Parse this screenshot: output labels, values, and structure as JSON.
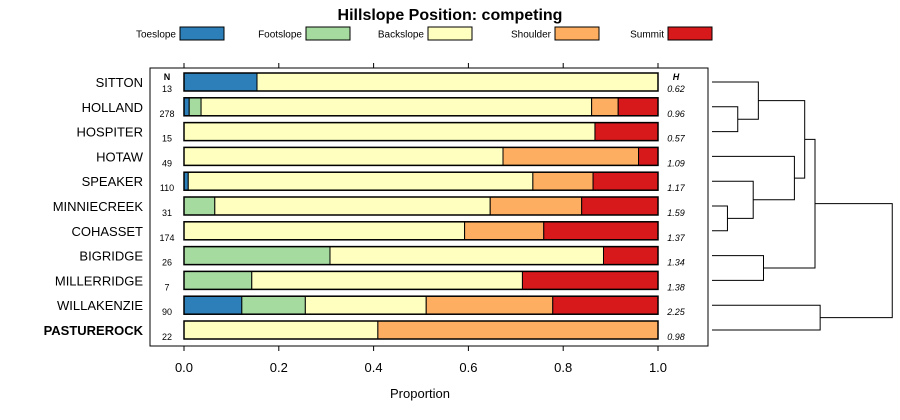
{
  "chart_data": {
    "type": "stacked-bar-horizontal",
    "title": "Hillslope Position: competing",
    "xlabel": "Proportion",
    "xlim": [
      0,
      1
    ],
    "xticks": [
      "0.0",
      "0.2",
      "0.4",
      "0.6",
      "0.8",
      "1.0"
    ],
    "n_header": "N",
    "h_header": "H",
    "legend": [
      {
        "name": "Toeslope",
        "color": "#2C7FB8"
      },
      {
        "name": "Footslope",
        "color": "#A6DBA0"
      },
      {
        "name": "Backslope",
        "color": "#FFFFBF"
      },
      {
        "name": "Shoulder",
        "color": "#FDAE61"
      },
      {
        "name": "Summit",
        "color": "#D7191C"
      }
    ],
    "rows": [
      {
        "name": "SITTON",
        "n": "13",
        "h": "0.62",
        "bold": false,
        "values": [
          0.154,
          0.0,
          0.846,
          0.0,
          0.0
        ]
      },
      {
        "name": "HOLLAND",
        "n": "278",
        "h": "0.96",
        "bold": false,
        "values": [
          0.011,
          0.025,
          0.824,
          0.056,
          0.084
        ]
      },
      {
        "name": "HOSPITER",
        "n": "15",
        "h": "0.57",
        "bold": false,
        "values": [
          0.0,
          0.0,
          0.867,
          0.0,
          0.133
        ]
      },
      {
        "name": "HOTAW",
        "n": "49",
        "h": "1.09",
        "bold": false,
        "values": [
          0.0,
          0.0,
          0.673,
          0.286,
          0.041
        ]
      },
      {
        "name": "SPEAKER",
        "n": "110",
        "h": "1.17",
        "bold": false,
        "values": [
          0.009,
          0.0,
          0.727,
          0.127,
          0.137
        ]
      },
      {
        "name": "MINNIECREEK",
        "n": "31",
        "h": "1.59",
        "bold": false,
        "values": [
          0.0,
          0.065,
          0.581,
          0.193,
          0.161
        ]
      },
      {
        "name": "COHASSET",
        "n": "174",
        "h": "1.37",
        "bold": false,
        "values": [
          0.0,
          0.0,
          0.592,
          0.167,
          0.241
        ]
      },
      {
        "name": "BIGRIDGE",
        "n": "26",
        "h": "1.34",
        "bold": false,
        "values": [
          0.0,
          0.308,
          0.577,
          0.0,
          0.115
        ]
      },
      {
        "name": "MILLERRIDGE",
        "n": "7",
        "h": "1.38",
        "bold": false,
        "values": [
          0.0,
          0.143,
          0.571,
          0.0,
          0.286
        ]
      },
      {
        "name": "WILLAKENZIE",
        "n": "90",
        "h": "2.25",
        "bold": false,
        "values": [
          0.122,
          0.134,
          0.255,
          0.267,
          0.222
        ]
      },
      {
        "name": "PASTUREROCK",
        "n": "22",
        "h": "0.98",
        "bold": true,
        "values": [
          0.0,
          0.0,
          0.409,
          0.591,
          0.0
        ]
      }
    ],
    "dendrogram": {
      "merges": [
        {
          "a": "MINNIECREEK",
          "b": "COHASSET",
          "height": 0.03
        },
        {
          "a": "HOLLAND",
          "b": "HOSPITER",
          "height": 0.05
        },
        {
          "a": "SPEAKER",
          "b": "m1",
          "height": 0.08
        },
        {
          "a": "SITTON",
          "b": "m2",
          "height": 0.09
        },
        {
          "a": "BIGRIDGE",
          "b": "MILLERRIDGE",
          "height": 0.1
        },
        {
          "a": "HOTAW",
          "b": "m3",
          "height": 0.16
        },
        {
          "a": "m4",
          "b": "m6",
          "height": 0.18
        },
        {
          "a": "m7",
          "b": "m5",
          "height": 0.2
        },
        {
          "a": "WILLAKENZIE",
          "b": "PASTUREROCK",
          "height": 0.21
        },
        {
          "a": "m8",
          "b": "m9",
          "height": 0.35
        }
      ]
    }
  }
}
